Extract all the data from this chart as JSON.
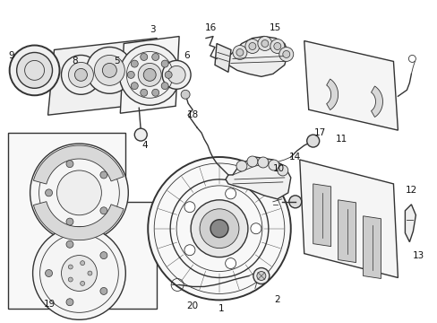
{
  "background_color": "#ffffff",
  "line_color": "#333333",
  "label_color": "#111111",
  "fig_width": 4.89,
  "fig_height": 3.6,
  "dpi": 100
}
